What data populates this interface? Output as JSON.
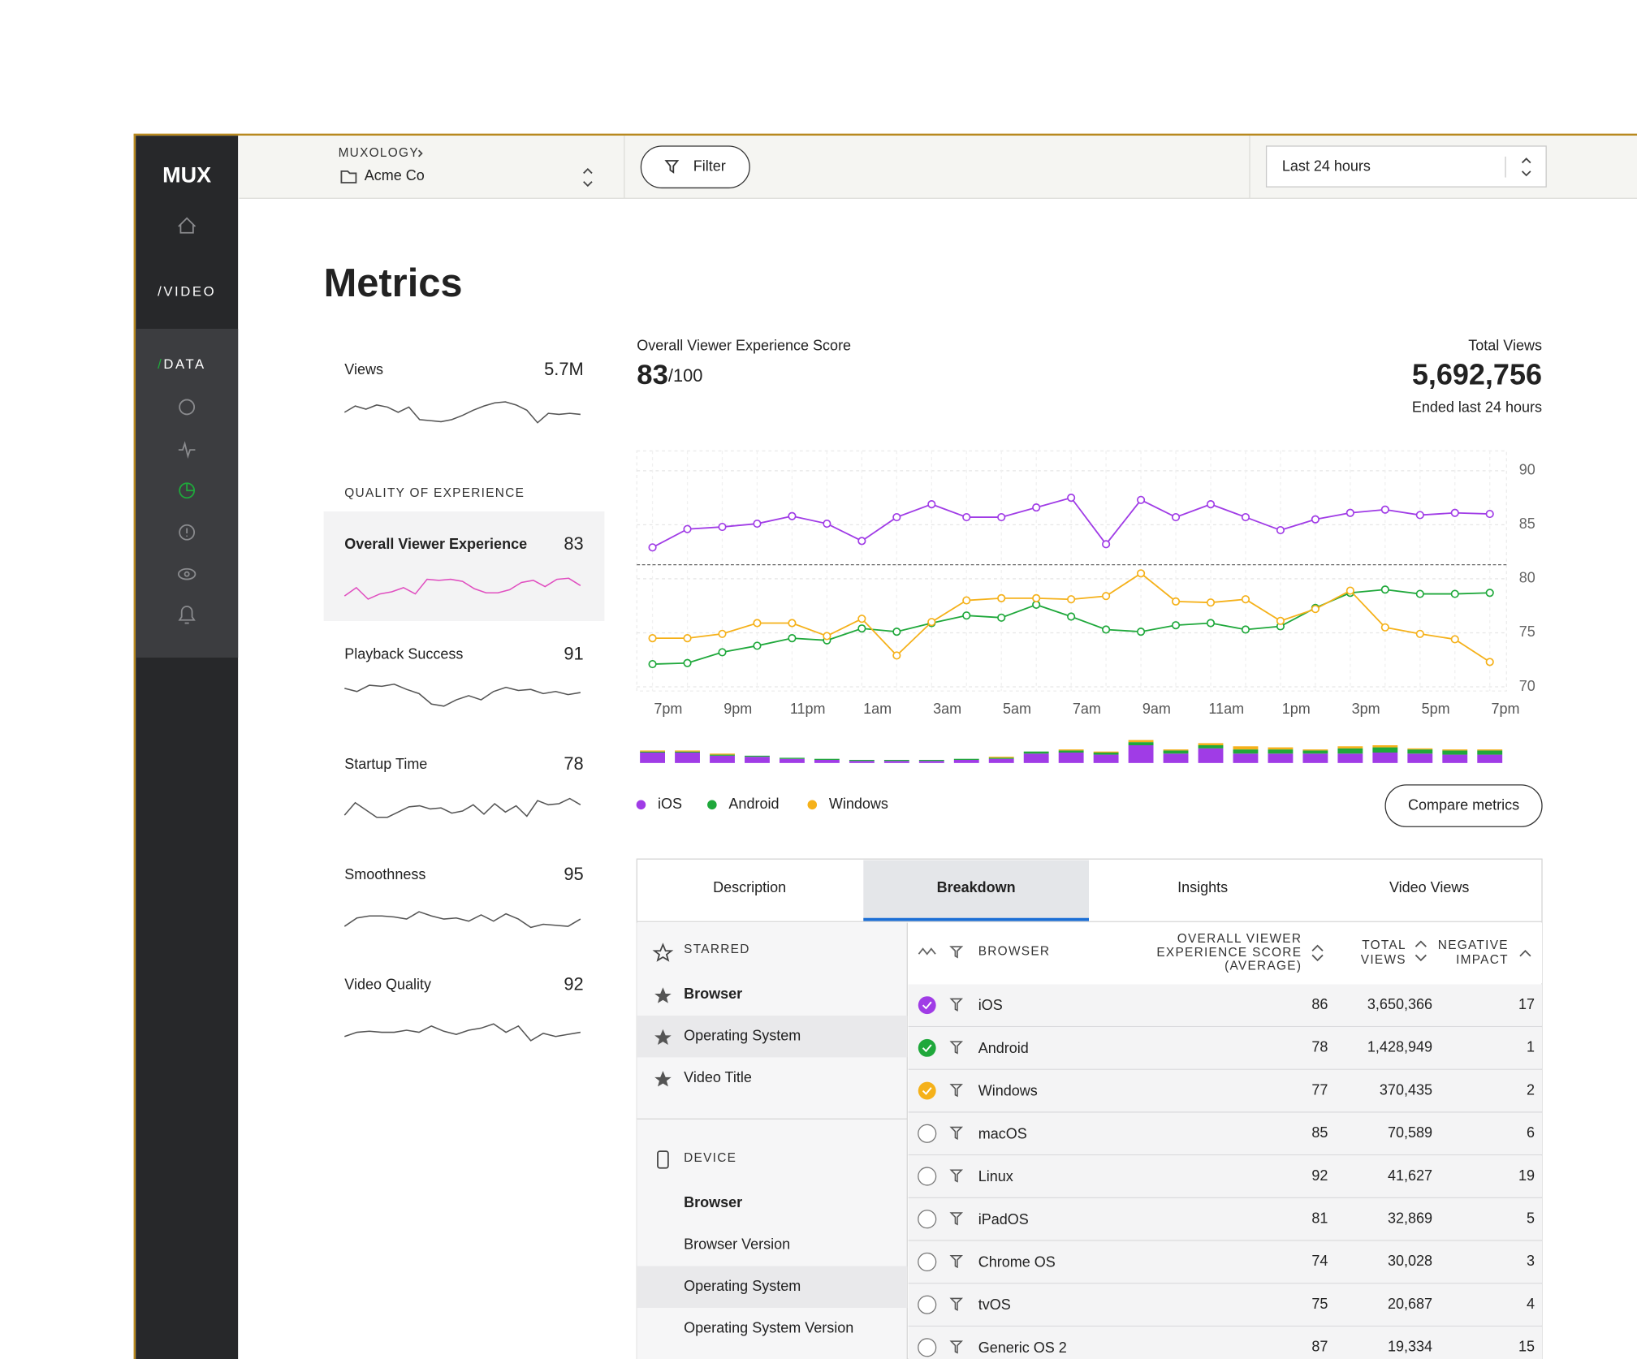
{
  "sidebar": {
    "logo": "MUX",
    "video": "/VIDEO",
    "data_slash": "/",
    "data": "DATA"
  },
  "header": {
    "org": "MUXOLOGY",
    "project": "Acme Co",
    "filter": "Filter",
    "time_range": "Last 24 hours"
  },
  "page_title": "Metrics",
  "metrics": {
    "views": {
      "label": "Views",
      "value": "5.7M",
      "spark": [
        15,
        21,
        18,
        22,
        20,
        15,
        20,
        8,
        7,
        6,
        8,
        12,
        17,
        21,
        24,
        25,
        22,
        17,
        5,
        14,
        13,
        14,
        13
      ]
    },
    "section": "QUALITY OF EXPERIENCE",
    "items": [
      {
        "label": "Overall Viewer Experience",
        "value": 83,
        "spark": [
          12,
          20,
          9,
          14,
          16,
          20,
          14,
          28,
          27,
          28,
          26,
          19,
          15,
          15,
          18,
          25,
          27,
          21,
          28,
          29,
          22
        ]
      },
      {
        "label": "Playback Success",
        "value": 91,
        "spark": [
          29,
          26,
          32,
          31,
          33,
          28,
          24,
          14,
          12,
          18,
          22,
          18,
          26,
          30,
          27,
          28,
          24,
          26,
          23,
          25
        ]
      },
      {
        "label": "Startup Time",
        "value": 78,
        "spark": [
          13,
          25,
          18,
          11,
          11,
          16,
          21,
          22,
          19,
          20,
          15,
          17,
          23,
          14,
          24,
          16,
          22,
          12,
          27,
          23,
          24,
          29,
          23
        ]
      },
      {
        "label": "Smoothness",
        "value": 95,
        "spark": [
          12,
          20,
          22,
          22,
          21,
          19,
          26,
          22,
          19,
          20,
          17,
          23,
          17,
          24,
          19,
          11,
          14,
          13,
          12,
          19
        ]
      },
      {
        "label": "Video Quality",
        "value": 92,
        "spark": [
          12,
          16,
          17,
          16,
          16,
          18,
          16,
          22,
          17,
          14,
          18,
          20,
          24,
          16,
          22,
          8,
          15,
          12,
          14,
          16
        ]
      }
    ]
  },
  "chart": {
    "type": "line",
    "title": "Overall Viewer Experience Score",
    "score": 83,
    "score_suffix": "/100",
    "total_label": "Total Views",
    "total": "5,692,756",
    "total_note": "Ended last 24 hours",
    "x": [
      "7pm",
      null,
      "9pm",
      null,
      "11pm",
      null,
      "1am",
      null,
      "3am",
      null,
      "5am",
      null,
      "7am",
      null,
      "9am",
      null,
      "11am",
      null,
      "1pm",
      null,
      "3pm",
      null,
      "5pm",
      null,
      "7pm"
    ],
    "ylim": [
      70,
      90
    ],
    "yticks": [
      70,
      75,
      80,
      85,
      90
    ],
    "grid": true,
    "threshold": 81.3,
    "series": [
      {
        "name": "iOS",
        "color": "#a03ce6",
        "values": [
          82.9,
          84.6,
          84.8,
          85.1,
          85.8,
          85.1,
          83.5,
          85.7,
          86.9,
          85.7,
          85.7,
          86.6,
          87.5,
          83.2,
          87.3,
          85.7,
          86.9,
          85.7,
          84.5,
          85.5,
          86.1,
          86.4,
          85.9,
          86.1,
          86.0
        ]
      },
      {
        "name": "Android",
        "color": "#1fa83b",
        "values": [
          72.1,
          72.2,
          73.2,
          73.8,
          74.5,
          74.3,
          75.4,
          75.1,
          75.9,
          76.6,
          76.4,
          77.6,
          76.5,
          75.3,
          75.1,
          75.7,
          75.9,
          75.3,
          75.6,
          77.3,
          78.7,
          79.0,
          78.6,
          78.6,
          78.7
        ]
      },
      {
        "name": "Windows",
        "color": "#f5b11a",
        "values": [
          74.5,
          74.5,
          74.9,
          75.9,
          75.9,
          74.7,
          76.3,
          72.9,
          76.0,
          78.0,
          78.2,
          78.2,
          78.1,
          78.4,
          80.5,
          77.9,
          77.8,
          78.1,
          76.1,
          77.2,
          78.9,
          75.5,
          74.9,
          74.4,
          72.3
        ]
      }
    ],
    "volume": [
      {
        "values": [
          10,
          10,
          7,
          6,
          4,
          3,
          2,
          2,
          2,
          3,
          4,
          9,
          10,
          8,
          17,
          9,
          14,
          9,
          9,
          9,
          9,
          10,
          9,
          8,
          8
        ]
      },
      {
        "values": [
          1,
          1,
          1,
          1,
          1,
          1,
          1,
          1,
          1,
          1,
          1,
          2,
          2,
          2,
          3,
          3,
          3,
          4,
          4,
          3,
          5,
          5,
          4,
          4,
          4
        ]
      },
      {
        "values": [
          1,
          1,
          1,
          0,
          0,
          0,
          0,
          0,
          0,
          0,
          1,
          0,
          1,
          1,
          2,
          1,
          2,
          3,
          2,
          1,
          2,
          2,
          1,
          1,
          1
        ]
      }
    ],
    "compare": "Compare metrics"
  },
  "tabs": [
    "Description",
    "Breakdown",
    "Insights",
    "Video Views"
  ],
  "dimensions": {
    "starred": {
      "heading": "STARRED",
      "items": [
        "Browser",
        "Operating System",
        "Video Title"
      ]
    },
    "device": {
      "heading": "DEVICE",
      "items": [
        "Browser",
        "Browser Version",
        "Operating System",
        "Operating System Version"
      ]
    }
  },
  "table": {
    "headers": {
      "name": "BROWSER",
      "score": [
        "OVERALL VIEWER",
        "EXPERIENCE SCORE",
        "(AVERAGE)"
      ],
      "views": [
        "TOTAL",
        "VIEWS"
      ],
      "impact": [
        "NEGATIVE",
        "IMPACT"
      ]
    },
    "rows": [
      {
        "name": "iOS",
        "score": 86,
        "views": "3,650,366",
        "impact": 17,
        "color": "#a03ce6"
      },
      {
        "name": "Android",
        "score": 78,
        "views": "1,428,949",
        "impact": 1,
        "color": "#1fa83b"
      },
      {
        "name": "Windows",
        "score": 77,
        "views": "370,435",
        "impact": 2,
        "color": "#f5b11a"
      },
      {
        "name": "macOS",
        "score": 85,
        "views": "70,589",
        "impact": 6,
        "color": null
      },
      {
        "name": "Linux",
        "score": 92,
        "views": "41,627",
        "impact": 19,
        "color": null
      },
      {
        "name": "iPadOS",
        "score": 81,
        "views": "32,869",
        "impact": 5,
        "color": null
      },
      {
        "name": "Chrome OS",
        "score": 74,
        "views": "30,028",
        "impact": 3,
        "color": null
      },
      {
        "name": "tvOS",
        "score": 75,
        "views": "20,687",
        "impact": 4,
        "color": null
      },
      {
        "name": "Generic OS 2",
        "score": 87,
        "views": "19,334",
        "impact": 15,
        "color": null
      }
    ]
  }
}
